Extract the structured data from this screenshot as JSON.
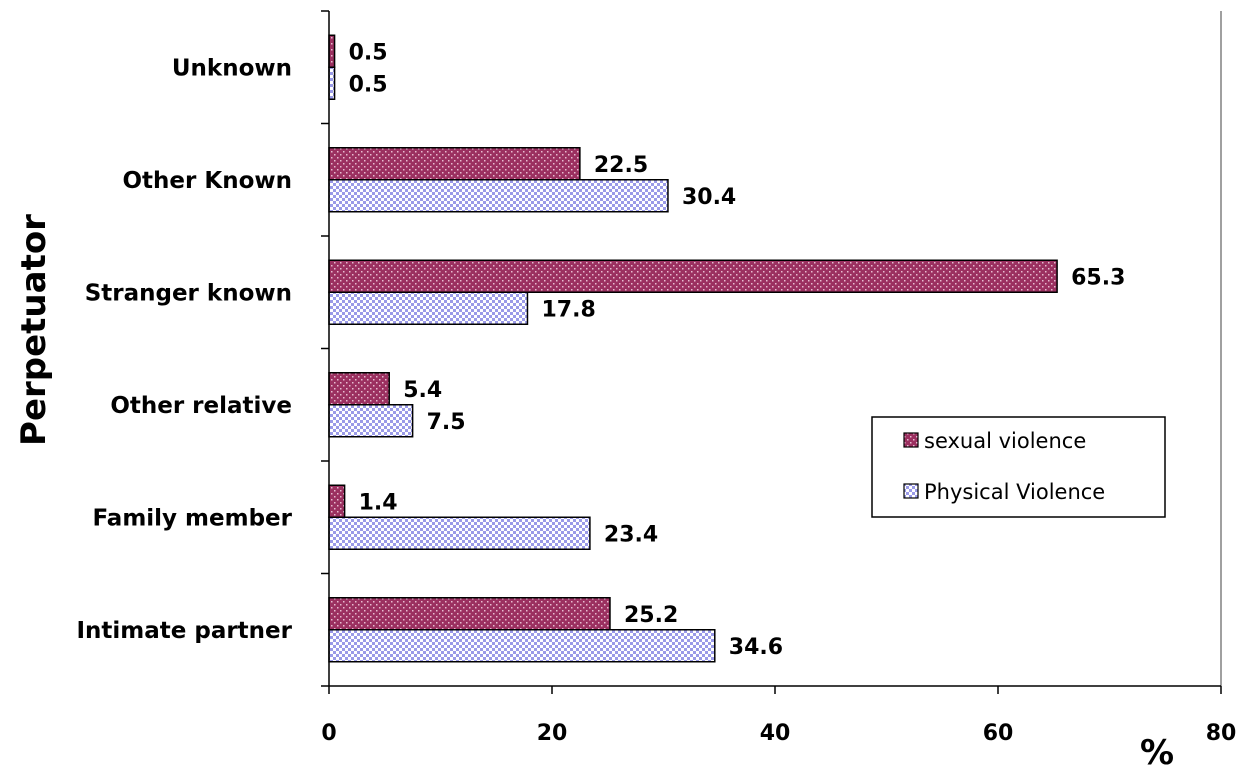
{
  "chart_data": {
    "type": "bar",
    "orientation": "horizontal",
    "categories": [
      "Unknown",
      "Other Known",
      "Stranger known",
      "Other relative",
      "Family member",
      "Intimate partner"
    ],
    "series": [
      {
        "name": "sexual violence",
        "values": [
          0.5,
          22.5,
          65.3,
          5.4,
          1.4,
          25.2
        ],
        "labels": [
          "0.5",
          "22.5",
          "65.3",
          "5.4",
          "1.4",
          "25.2"
        ],
        "color": "#9b3060",
        "pattern": "dots"
      },
      {
        "name": "Physical Violence",
        "values": [
          0.5,
          30.4,
          17.8,
          7.5,
          23.4,
          34.6
        ],
        "labels": [
          "0.5",
          "30.4",
          "17.8",
          "7.5",
          "23.4",
          "34.6"
        ],
        "color": "#9a9ae8",
        "pattern": "checker"
      }
    ],
    "xlabel": "%",
    "ylabel": "Perpetuator",
    "xlim": [
      0,
      80
    ],
    "xticks": [
      0,
      20,
      40,
      60,
      80
    ],
    "xtick_labels": [
      "0",
      "20",
      "40",
      "60",
      "80"
    ],
    "grid": false,
    "legend_position": "right"
  }
}
